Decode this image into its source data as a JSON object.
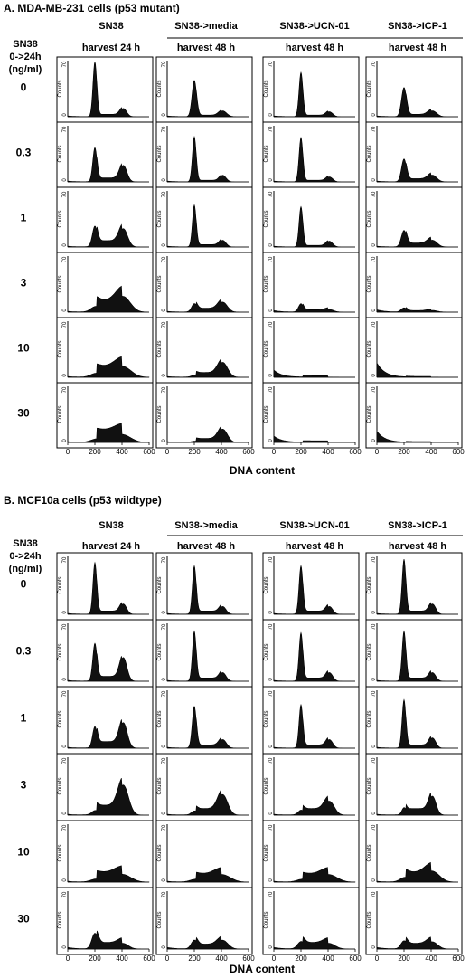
{
  "panel_a": {
    "title": "A.  MDA-MB-231 cells (p53 mutant)",
    "row_header": [
      "SN38",
      "0->24h",
      "(ng/ml)"
    ],
    "col_top": [
      "SN38",
      "SN38->media",
      "SN38->UCN-01",
      "SN38->ICP-1"
    ],
    "col_sub": [
      "harvest 24 h",
      "harvest 48 h",
      "harvest 48 h",
      "harvest 48 h"
    ],
    "row_labels": [
      "0",
      "0.3",
      "1",
      "3",
      "10",
      "30"
    ],
    "y_label": "Counts",
    "y_top_tick": "70",
    "y_bottom_tick": "0",
    "x_ticks": [
      "0",
      "200",
      "400",
      "600"
    ],
    "x_axis_label": "DNA content"
  },
  "panel_b": {
    "title": "B.  MCF10a cells (p53 wildtype)",
    "row_header": [
      "SN38",
      "0->24h",
      "(ng/ml)"
    ],
    "col_top": [
      "SN38",
      "SN38->media",
      "SN38->UCN-01",
      "SN38->ICP-1"
    ],
    "col_sub": [
      "harvest 24 h",
      "harvest 48 h",
      "harvest 48 h",
      "harvest 48 h"
    ],
    "row_labels": [
      "0",
      "0.3",
      "1",
      "3",
      "10",
      "30"
    ],
    "y_label": "Counts",
    "y_top_tick": "70",
    "y_bottom_tick": "0",
    "x_ticks": [
      "0",
      "200",
      "400",
      "600"
    ],
    "x_axis_label": "DNA content"
  },
  "chart_data": [
    {
      "type": "area",
      "title": "A.  MDA-MB-231 cells (p53 mutant)",
      "xlabel": "DNA content",
      "ylabel": "Counts",
      "xlim": [
        0,
        600
      ],
      "ylim": [
        0,
        70
      ],
      "columns": [
        "SN38",
        "SN38->media",
        "SN38->UCN-01",
        "SN38->ICP-1"
      ],
      "rows": [
        "0",
        "0.3",
        "1",
        "3",
        "10",
        "30"
      ],
      "histograms": [
        [
          {
            "g1": 68,
            "g2": 10,
            "sub": 1,
            "s": 3,
            "spread": 1.0
          },
          {
            "g1": 45,
            "g2": 7,
            "sub": 1,
            "s": 2,
            "spread": 1.2
          },
          {
            "g1": 55,
            "g2": 6,
            "sub": 1,
            "s": 2,
            "spread": 1.0
          },
          {
            "g1": 36,
            "g2": 7,
            "sub": 1,
            "s": 3,
            "spread": 1.3
          }
        ],
        [
          {
            "g1": 42,
            "g2": 20,
            "sub": 1,
            "s": 5,
            "spread": 1.1
          },
          {
            "g1": 56,
            "g2": 8,
            "sub": 1,
            "s": 2,
            "spread": 1.0
          },
          {
            "g1": 55,
            "g2": 6,
            "sub": 1,
            "s": 2,
            "spread": 1.0
          },
          {
            "g1": 28,
            "g2": 8,
            "sub": 1,
            "s": 4,
            "spread": 1.3
          }
        ],
        [
          {
            "g1": 25,
            "g2": 22,
            "sub": 1,
            "s": 8,
            "spread": 1.3
          },
          {
            "g1": 52,
            "g2": 8,
            "sub": 1,
            "s": 3,
            "spread": 1.0
          },
          {
            "g1": 50,
            "g2": 7,
            "sub": 1,
            "s": 2,
            "spread": 1.0
          },
          {
            "g1": 20,
            "g2": 8,
            "sub": 1,
            "s": 5,
            "spread": 1.4
          }
        ],
        [
          {
            "g1": 5,
            "g2": 18,
            "sub": 1,
            "s": 15,
            "spread": 2.2
          },
          {
            "g1": 10,
            "g2": 12,
            "sub": 1,
            "s": 5,
            "spread": 1.4
          },
          {
            "g1": 10,
            "g2": 3,
            "sub": 2,
            "s": 3,
            "spread": 1.3
          },
          {
            "g1": 5,
            "g2": 2,
            "sub": 3,
            "s": 2,
            "spread": 1.5
          }
        ],
        [
          {
            "g1": 3,
            "g2": 12,
            "sub": 1,
            "s": 14,
            "spread": 2.5
          },
          {
            "g1": 2,
            "g2": 18,
            "sub": 1,
            "s": 6,
            "spread": 1.5
          },
          {
            "g1": 0,
            "g2": 0,
            "sub": 9,
            "s": 2,
            "spread": 1.0
          },
          {
            "g1": 0,
            "g2": 0,
            "sub": 18,
            "s": 1,
            "spread": 1.0
          }
        ],
        [
          {
            "g1": 2,
            "g2": 8,
            "sub": 1,
            "s": 16,
            "spread": 2.5
          },
          {
            "g1": 1,
            "g2": 16,
            "sub": 1,
            "s": 5,
            "spread": 1.4
          },
          {
            "g1": 0,
            "g2": 0,
            "sub": 8,
            "s": 2,
            "spread": 1.0
          },
          {
            "g1": 0,
            "g2": 0,
            "sub": 14,
            "s": 1,
            "spread": 1.0
          }
        ]
      ]
    },
    {
      "type": "area",
      "title": "B.  MCF10a cells (p53 wildtype)",
      "xlabel": "DNA content",
      "ylabel": "Counts",
      "xlim": [
        0,
        600
      ],
      "ylim": [
        0,
        70
      ],
      "columns": [
        "SN38",
        "SN38->media",
        "SN38->UCN-01",
        "SN38->ICP-1"
      ],
      "rows": [
        "0",
        "0.3",
        "1",
        "3",
        "10",
        "30"
      ],
      "histograms": [
        [
          {
            "g1": 62,
            "g2": 12,
            "sub": 1,
            "s": 4,
            "spread": 1.0
          },
          {
            "g1": 58,
            "g2": 9,
            "sub": 1,
            "s": 4,
            "spread": 1.0
          },
          {
            "g1": 58,
            "g2": 9,
            "sub": 1,
            "s": 4,
            "spread": 1.0
          },
          {
            "g1": 66,
            "g2": 12,
            "sub": 1,
            "s": 4,
            "spread": 1.0
          }
        ],
        [
          {
            "g1": 45,
            "g2": 28,
            "sub": 1,
            "s": 6,
            "spread": 1.1
          },
          {
            "g1": 60,
            "g2": 10,
            "sub": 1,
            "s": 4,
            "spread": 1.0
          },
          {
            "g1": 58,
            "g2": 10,
            "sub": 1,
            "s": 4,
            "spread": 1.0
          },
          {
            "g1": 60,
            "g2": 10,
            "sub": 1,
            "s": 4,
            "spread": 1.0
          }
        ],
        [
          {
            "g1": 25,
            "g2": 30,
            "sub": 1,
            "s": 8,
            "spread": 1.2
          },
          {
            "g1": 50,
            "g2": 10,
            "sub": 1,
            "s": 4,
            "spread": 1.1
          },
          {
            "g1": 52,
            "g2": 10,
            "sub": 1,
            "s": 4,
            "spread": 1.0
          },
          {
            "g1": 58,
            "g2": 12,
            "sub": 1,
            "s": 4,
            "spread": 1.0
          }
        ],
        [
          {
            "g1": 4,
            "g2": 35,
            "sub": 1,
            "s": 12,
            "spread": 1.6
          },
          {
            "g1": 4,
            "g2": 24,
            "sub": 1,
            "s": 8,
            "spread": 1.5
          },
          {
            "g1": 5,
            "g2": 16,
            "sub": 1,
            "s": 8,
            "spread": 1.5
          },
          {
            "g1": 8,
            "g2": 22,
            "sub": 1,
            "s": 8,
            "spread": 1.1
          }
        ],
        [
          {
            "g1": 2,
            "g2": 8,
            "sub": 1,
            "s": 12,
            "spread": 2.5
          },
          {
            "g1": 2,
            "g2": 8,
            "sub": 1,
            "s": 10,
            "spread": 2.5
          },
          {
            "g1": 2,
            "g2": 8,
            "sub": 1,
            "s": 10,
            "spread": 2.5
          },
          {
            "g1": 4,
            "g2": 12,
            "sub": 1,
            "s": 12,
            "spread": 2.2
          }
        ],
        [
          {
            "g1": 18,
            "g2": 6,
            "sub": 2,
            "s": 8,
            "spread": 1.6
          },
          {
            "g1": 10,
            "g2": 10,
            "sub": 2,
            "s": 6,
            "spread": 1.6
          },
          {
            "g1": 8,
            "g2": 6,
            "sub": 2,
            "s": 8,
            "spread": 1.8
          },
          {
            "g1": 9,
            "g2": 8,
            "sub": 2,
            "s": 7,
            "spread": 1.6
          }
        ]
      ]
    }
  ]
}
